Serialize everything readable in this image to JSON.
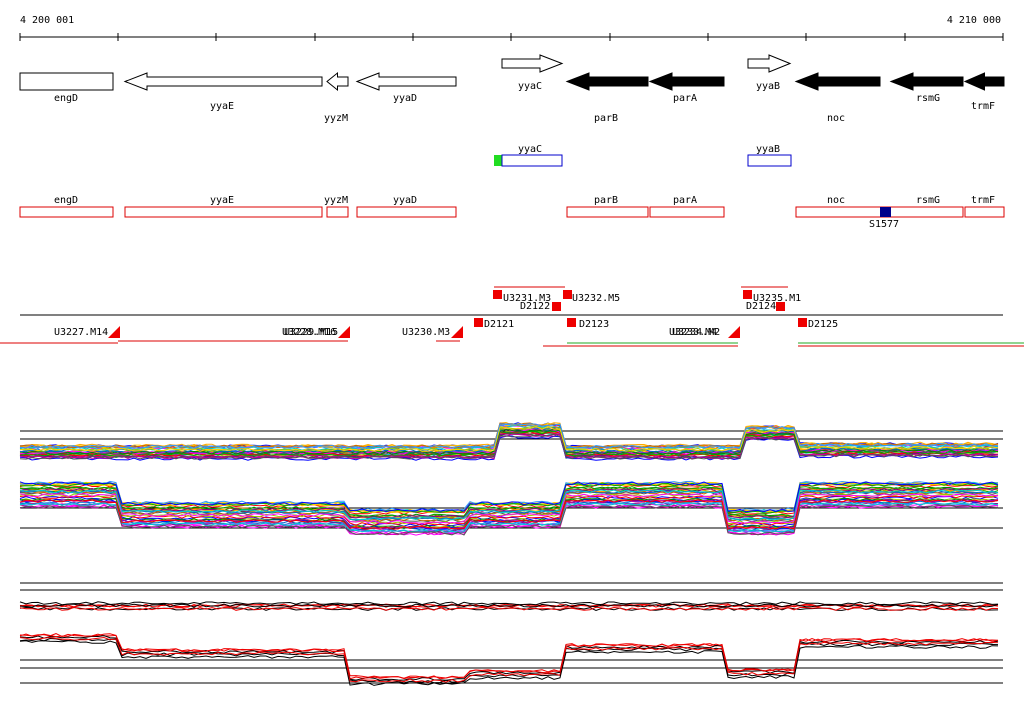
{
  "ruler": {
    "start": "4 200 001",
    "end": "4 210 000"
  },
  "genes": [
    "engD",
    "yyaE",
    "yyzM",
    "yyaD",
    "yyaC",
    "parB",
    "parA",
    "yyaB",
    "noc",
    "rsmG",
    "trmF"
  ],
  "features": [
    "yyaC",
    "yyaB"
  ],
  "cds": [
    "engD",
    "yyaE",
    "yyzM",
    "yyaD",
    "parB",
    "parA",
    "noc",
    "rsmG",
    "trmF"
  ],
  "site": "S1577",
  "segments": [
    "U3231.M3",
    "U3232.M5",
    "D2122",
    "U3235.M1",
    "D2124",
    "U3227.M14",
    "U3228.M16",
    "U3229.M15",
    "U3230.M3",
    "D2121",
    "D2123",
    "U3233.M4",
    "U3234.M2",
    "D2125"
  ]
}
